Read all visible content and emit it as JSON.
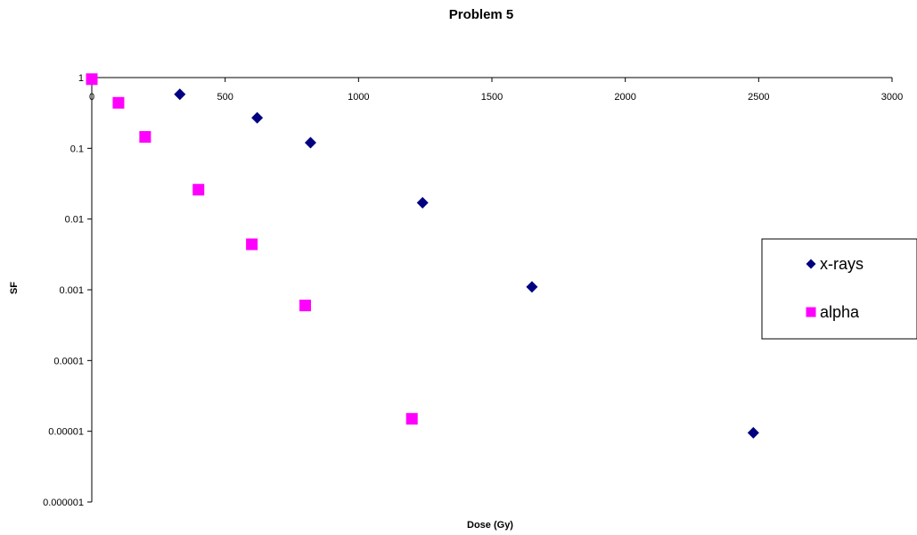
{
  "chart_data": {
    "type": "scatter",
    "title": "Problem 5",
    "xlabel": "Dose (Gy)",
    "ylabel": "SF",
    "xlim": [
      0,
      3000
    ],
    "ylim": [
      1e-06,
      1
    ],
    "y_scale": "log",
    "x_axis_position": "top",
    "x_ticks": [
      "0",
      "500",
      "1000",
      "1500",
      "2000",
      "2500",
      "3000"
    ],
    "y_ticks": [
      "1",
      "0.1",
      "0.01",
      "0.001",
      "0.0001",
      "0.00001",
      "0.000001"
    ],
    "grid": false,
    "legend_position": "right",
    "series": [
      {
        "name": "x-rays",
        "marker": "diamond",
        "color": "#000080",
        "x": [
          330,
          620,
          820,
          1240,
          1650,
          2480
        ],
        "y": [
          0.58,
          0.27,
          0.12,
          0.017,
          0.0011,
          9.5e-06
        ]
      },
      {
        "name": "alpha",
        "marker": "square",
        "color": "#FF00FF",
        "x": [
          0,
          100,
          200,
          400,
          600,
          800,
          1200
        ],
        "y": [
          0.95,
          0.44,
          0.145,
          0.026,
          0.0044,
          0.0006,
          1.5e-05
        ]
      }
    ]
  }
}
